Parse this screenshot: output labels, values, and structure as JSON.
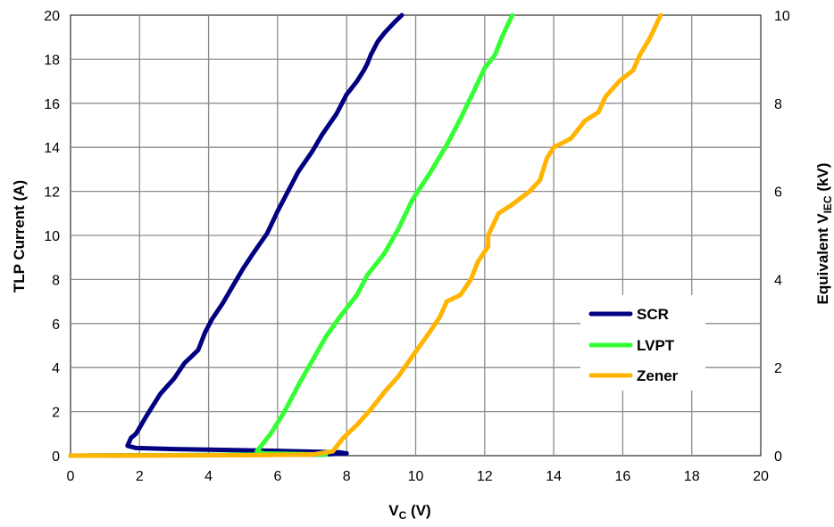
{
  "chart_data": {
    "type": "line",
    "title": "",
    "xlabel": "V",
    "xlabel_sub": "C",
    "xlabel_unit": " (V)",
    "ylabel": "TLP Current (A)",
    "y2label": "Equivalent V",
    "y2label_sub": "IEC",
    "y2label_unit": " (kV)",
    "xlim": [
      0,
      20
    ],
    "ylim": [
      0,
      20
    ],
    "y2lim": [
      0,
      10
    ],
    "xticks": [
      "0",
      "2",
      "4",
      "6",
      "8",
      "10",
      "12",
      "14",
      "16",
      "18",
      "20"
    ],
    "yticks": [
      "0",
      "2",
      "4",
      "6",
      "8",
      "10",
      "12",
      "14",
      "16",
      "18",
      "20"
    ],
    "y2ticks": [
      "0",
      "2",
      "4",
      "6",
      "8",
      "10"
    ],
    "grid": true,
    "legend_position": "right-middle",
    "series": [
      {
        "name": "SCR",
        "color": "#000080",
        "points": [
          [
            0,
            0
          ],
          [
            7.3,
            0.05
          ],
          [
            8.0,
            0.1
          ],
          [
            7.8,
            0.15
          ],
          [
            6.0,
            0.22
          ],
          [
            3.0,
            0.3
          ],
          [
            1.9,
            0.35
          ],
          [
            1.65,
            0.45
          ],
          [
            1.75,
            0.8
          ],
          [
            1.9,
            1.0
          ],
          [
            2.2,
            1.8
          ],
          [
            2.6,
            2.8
          ],
          [
            3.0,
            3.5
          ],
          [
            3.3,
            4.2
          ],
          [
            3.5,
            4.5
          ],
          [
            3.7,
            4.8
          ],
          [
            3.9,
            5.6
          ],
          [
            4.1,
            6.2
          ],
          [
            4.4,
            6.9
          ],
          [
            4.7,
            7.7
          ],
          [
            5.0,
            8.5
          ],
          [
            5.3,
            9.2
          ],
          [
            5.7,
            10.1
          ],
          [
            6.0,
            11.1
          ],
          [
            6.3,
            12.0
          ],
          [
            6.6,
            12.9
          ],
          [
            7.0,
            13.8
          ],
          [
            7.3,
            14.6
          ],
          [
            7.7,
            15.5
          ],
          [
            8.0,
            16.4
          ],
          [
            8.3,
            17.0
          ],
          [
            8.5,
            17.5
          ],
          [
            8.6,
            17.8
          ],
          [
            8.7,
            18.2
          ],
          [
            8.9,
            18.8
          ],
          [
            9.1,
            19.2
          ],
          [
            9.4,
            19.7
          ],
          [
            9.6,
            20.0
          ]
        ]
      },
      {
        "name": "LVPT",
        "color": "#33ff33",
        "points": [
          [
            0,
            0
          ],
          [
            3.0,
            0.02
          ],
          [
            5.5,
            0.05
          ],
          [
            7.4,
            0.05
          ],
          [
            5.6,
            0.1
          ],
          [
            5.4,
            0.2
          ],
          [
            5.8,
            1.0
          ],
          [
            6.2,
            2.0
          ],
          [
            6.6,
            3.2
          ],
          [
            7.0,
            4.3
          ],
          [
            7.4,
            5.4
          ],
          [
            7.8,
            6.3
          ],
          [
            8.3,
            7.3
          ],
          [
            8.6,
            8.2
          ],
          [
            9.1,
            9.2
          ],
          [
            9.5,
            10.3
          ],
          [
            9.9,
            11.6
          ],
          [
            10.4,
            12.8
          ],
          [
            10.9,
            14.1
          ],
          [
            11.3,
            15.3
          ],
          [
            11.7,
            16.6
          ],
          [
            12.0,
            17.6
          ],
          [
            12.3,
            18.2
          ],
          [
            12.5,
            19.0
          ],
          [
            12.8,
            20.0
          ]
        ]
      },
      {
        "name": "Zener",
        "color": "#ffb400",
        "points": [
          [
            0,
            0
          ],
          [
            5.0,
            0.02
          ],
          [
            7.0,
            0.05
          ],
          [
            7.6,
            0.2
          ],
          [
            7.9,
            0.8
          ],
          [
            8.3,
            1.4
          ],
          [
            8.7,
            2.1
          ],
          [
            9.1,
            2.9
          ],
          [
            9.5,
            3.6
          ],
          [
            9.9,
            4.5
          ],
          [
            10.4,
            5.6
          ],
          [
            10.7,
            6.3
          ],
          [
            10.9,
            7.0
          ],
          [
            11.3,
            7.3
          ],
          [
            11.6,
            8.0
          ],
          [
            11.8,
            8.8
          ],
          [
            12.1,
            9.5
          ],
          [
            12.1,
            10.0
          ],
          [
            12.4,
            11.0
          ],
          [
            12.8,
            11.4
          ],
          [
            13.3,
            12.0
          ],
          [
            13.6,
            12.5
          ],
          [
            13.8,
            13.5
          ],
          [
            14.0,
            14.0
          ],
          [
            14.5,
            14.4
          ],
          [
            14.9,
            15.2
          ],
          [
            15.3,
            15.6
          ],
          [
            15.5,
            16.3
          ],
          [
            15.9,
            17.0
          ],
          [
            16.3,
            17.5
          ],
          [
            16.5,
            18.2
          ],
          [
            16.8,
            19.0
          ],
          [
            17.1,
            20.0
          ]
        ]
      }
    ]
  }
}
